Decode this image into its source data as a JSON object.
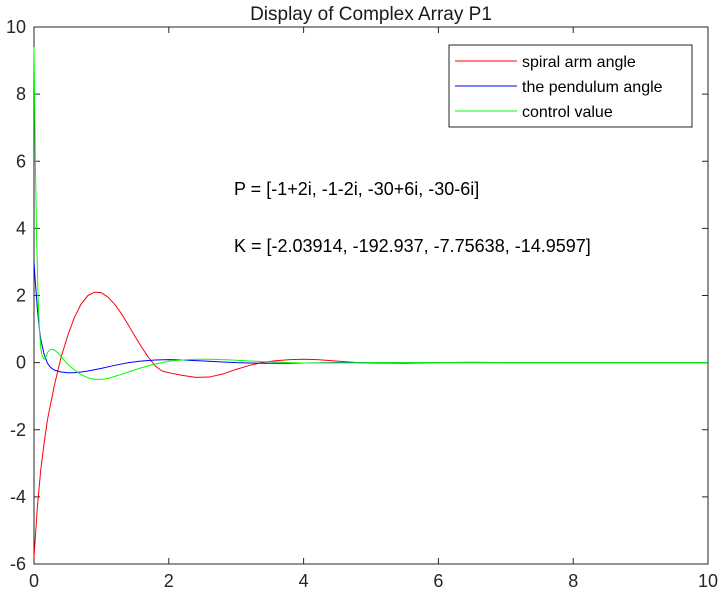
{
  "chart_data": {
    "type": "line",
    "title": "Display of Complex Array P1",
    "xlabel": "",
    "ylabel": "",
    "xlim": [
      0,
      10
    ],
    "ylim": [
      -6,
      10
    ],
    "x_ticks": [
      0,
      2,
      4,
      6,
      8,
      10
    ],
    "y_ticks": [
      -6,
      -4,
      -2,
      0,
      2,
      4,
      6,
      8,
      10
    ],
    "x_tick_labels": [
      "0",
      "2",
      "4",
      "6",
      "8",
      "10"
    ],
    "y_tick_labels": [
      "-6",
      "-4",
      "-2",
      "0",
      "2",
      "4",
      "6",
      "8",
      "10"
    ],
    "grid": false,
    "legend_position": "top-right",
    "annotations": [
      "P = [-1+2i, -1-2i, -30+6i, -30-6i]",
      "K = [-2.03914, -192.937, -7.75638, -14.9597]"
    ],
    "series": [
      {
        "name": "spiral arm angle",
        "color": "#ff0000",
        "x": [
          0,
          0.05,
          0.1,
          0.15,
          0.2,
          0.3,
          0.4,
          0.5,
          0.6,
          0.7,
          0.8,
          0.9,
          1.0,
          1.1,
          1.2,
          1.3,
          1.4,
          1.5,
          1.6,
          1.7,
          1.8,
          1.9,
          2.0,
          2.2,
          2.4,
          2.6,
          2.8,
          3.0,
          3.2,
          3.4,
          3.6,
          3.8,
          4.0,
          4.2,
          4.4,
          4.6,
          4.8,
          5.0,
          5.5,
          6.0,
          6.5,
          7.0,
          8.0,
          9.0,
          10.0
        ],
        "values": [
          -5.8,
          -4.3,
          -3.2,
          -2.4,
          -1.7,
          -0.7,
          0.15,
          0.8,
          1.35,
          1.75,
          2.0,
          2.1,
          2.08,
          1.95,
          1.73,
          1.45,
          1.12,
          0.78,
          0.45,
          0.15,
          -0.1,
          -0.25,
          -0.3,
          -0.38,
          -0.44,
          -0.43,
          -0.34,
          -0.2,
          -0.08,
          0.01,
          0.06,
          0.09,
          0.1,
          0.09,
          0.06,
          0.03,
          0.0,
          -0.01,
          -0.02,
          0.0,
          0.01,
          0.0,
          0.0,
          0.0,
          0.0
        ]
      },
      {
        "name": "the pendulum angle",
        "color": "#0000ff",
        "x": [
          0,
          0.02,
          0.05,
          0.08,
          0.1,
          0.15,
          0.2,
          0.25,
          0.3,
          0.4,
          0.5,
          0.6,
          0.7,
          0.8,
          1.0,
          1.2,
          1.4,
          1.6,
          1.8,
          2.0,
          2.2,
          2.4,
          2.6,
          2.8,
          3.0,
          3.2,
          3.4,
          3.6,
          3.8,
          4.0,
          4.5,
          5.0,
          6.0,
          8.0,
          10.0
        ],
        "values": [
          3.0,
          2.4,
          1.6,
          1.0,
          0.7,
          0.25,
          -0.02,
          -0.15,
          -0.22,
          -0.28,
          -0.3,
          -0.3,
          -0.28,
          -0.25,
          -0.17,
          -0.08,
          0.0,
          0.05,
          0.08,
          0.09,
          0.08,
          0.06,
          0.04,
          0.02,
          0.0,
          -0.01,
          -0.02,
          -0.02,
          -0.02,
          -0.01,
          0.0,
          0.0,
          0.0,
          0.0,
          0.0
        ]
      },
      {
        "name": "control value",
        "color": "#00ff00",
        "x": [
          0,
          0.02,
          0.04,
          0.06,
          0.08,
          0.1,
          0.12,
          0.15,
          0.18,
          0.2,
          0.25,
          0.3,
          0.35,
          0.4,
          0.5,
          0.6,
          0.7,
          0.8,
          0.9,
          1.0,
          1.1,
          1.2,
          1.4,
          1.6,
          1.8,
          2.0,
          2.2,
          2.4,
          2.6,
          2.8,
          3.0,
          3.2,
          3.4,
          3.6,
          3.8,
          4.0,
          4.5,
          5.0,
          6.0,
          8.0,
          10.0
        ],
        "values": [
          9.4,
          6.0,
          3.6,
          2.0,
          1.0,
          0.45,
          0.2,
          0.1,
          0.18,
          0.3,
          0.4,
          0.38,
          0.3,
          0.18,
          -0.05,
          -0.22,
          -0.36,
          -0.45,
          -0.5,
          -0.5,
          -0.47,
          -0.41,
          -0.28,
          -0.15,
          -0.04,
          0.04,
          0.08,
          0.1,
          0.1,
          0.09,
          0.07,
          0.05,
          0.03,
          0.02,
          0.0,
          -0.01,
          -0.01,
          0.0,
          0.0,
          0.0,
          0.0
        ]
      }
    ]
  }
}
